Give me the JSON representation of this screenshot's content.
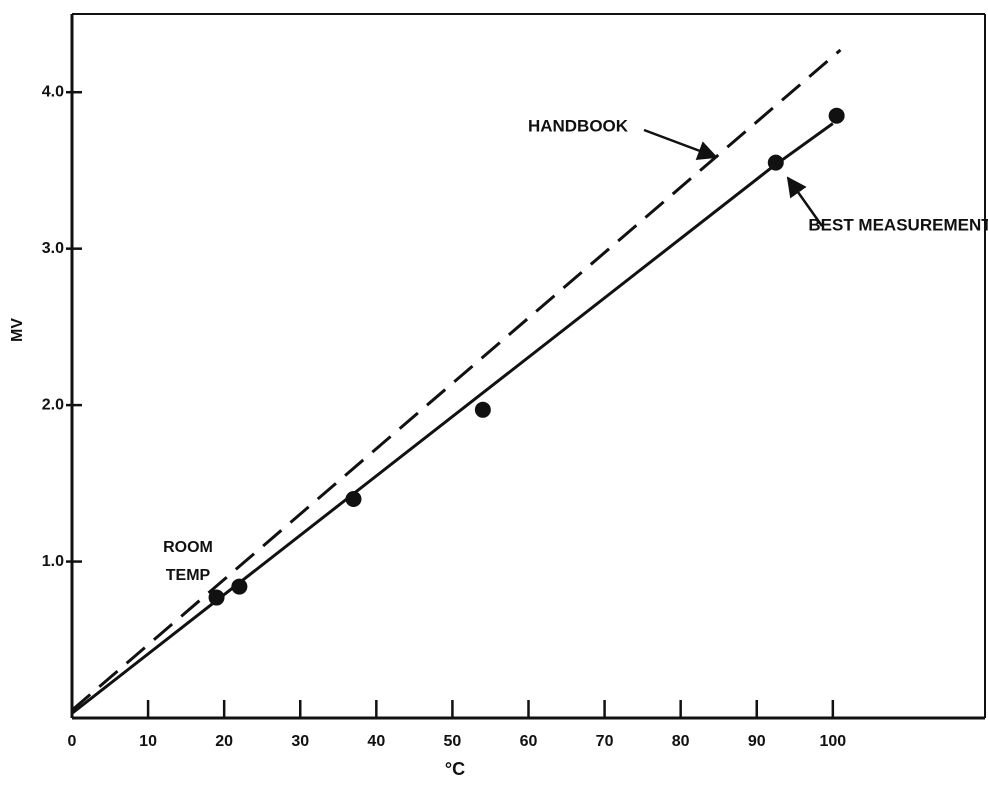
{
  "chart_data": {
    "type": "line",
    "xlabel": "°C",
    "ylabel": "MV",
    "xlim": [
      0,
      120
    ],
    "ylim": [
      0,
      4.5
    ],
    "xticks": [
      0,
      10,
      20,
      30,
      40,
      50,
      60,
      70,
      80,
      90,
      100
    ],
    "yticks": [
      {
        "value": 1,
        "label": "1.0"
      },
      {
        "value": 2,
        "label": "2.0"
      },
      {
        "value": 3,
        "label": "3.0"
      },
      {
        "value": 4,
        "label": "4.0"
      }
    ],
    "series": [
      {
        "name": "HANDBOOK",
        "color": "#111111",
        "dashed": true,
        "x": [
          0,
          101
        ],
        "values": [
          0.05,
          4.27
        ]
      },
      {
        "name": "BEST MEASUREMENT",
        "color": "#111111",
        "dashed": false,
        "x": [
          0,
          92,
          100
        ],
        "values": [
          0.03,
          3.52,
          3.8
        ]
      }
    ],
    "points": {
      "color": "#111111",
      "x": [
        19,
        22,
        37,
        54,
        92.5,
        100.5
      ],
      "values": [
        0.77,
        0.84,
        1.4,
        1.97,
        3.55,
        3.85
      ]
    },
    "annotation": [
      "ROOM",
      "TEMP"
    ]
  }
}
